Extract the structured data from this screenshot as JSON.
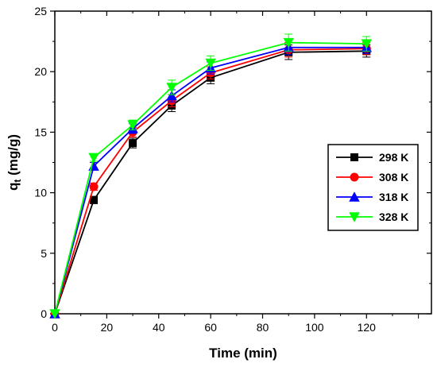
{
  "chart_data": {
    "type": "line",
    "xlabel": "Time (min)",
    "ylabel_main": "q",
    "ylabel_sub": "t",
    "ylabel_tail": " (mg/g)",
    "xlim": [
      0,
      145
    ],
    "ylim": [
      0,
      25
    ],
    "xticks": [
      0,
      20,
      40,
      60,
      80,
      100,
      120
    ],
    "yticks": [
      0,
      5,
      10,
      15,
      20,
      25
    ],
    "x": [
      0,
      15,
      30,
      45,
      60,
      90,
      120
    ],
    "grid": false,
    "legend_position": "right",
    "series": [
      {
        "name": "298 K",
        "color": "#000000",
        "marker": "square",
        "values": [
          0,
          9.4,
          14.1,
          17.2,
          19.5,
          21.6,
          21.7
        ],
        "errors": [
          0,
          0.3,
          0.4,
          0.5,
          0.5,
          0.6,
          0.5
        ]
      },
      {
        "name": "308 K",
        "color": "#ff0000",
        "marker": "circle",
        "values": [
          0,
          10.5,
          15.0,
          17.6,
          19.9,
          21.8,
          21.9
        ],
        "errors": [
          0,
          0.3,
          0.4,
          0.5,
          0.5,
          0.6,
          0.5
        ]
      },
      {
        "name": "318 K",
        "color": "#0000ff",
        "marker": "triangle-up",
        "values": [
          0,
          12.2,
          15.3,
          18.0,
          20.3,
          22.0,
          22.0
        ],
        "errors": [
          0,
          0.3,
          0.4,
          0.5,
          0.5,
          0.6,
          0.5
        ]
      },
      {
        "name": "328 K",
        "color": "#00ff00",
        "marker": "triangle-down",
        "values": [
          0,
          12.9,
          15.6,
          18.7,
          20.7,
          22.4,
          22.3
        ],
        "errors": [
          0,
          0.3,
          0.4,
          0.6,
          0.6,
          0.7,
          0.6
        ]
      }
    ]
  }
}
